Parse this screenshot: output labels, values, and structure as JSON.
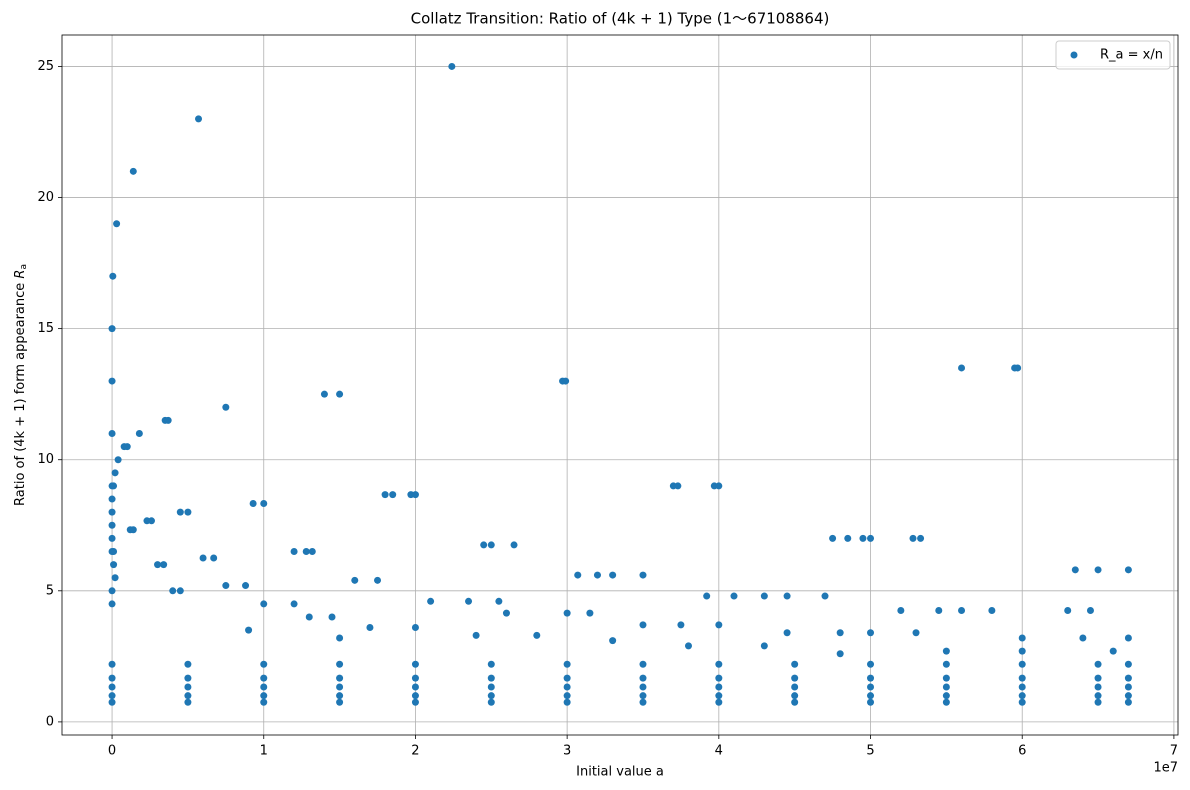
{
  "chart_data": {
    "type": "scatter",
    "title": "Collatz Transition: Ratio of (4k + 1) Type (1～67108864)",
    "xlabel": "Initial value a",
    "ylabel": "Ratio of (4k + 1) form appearance",
    "ylabel_symbol": "R",
    "ylabel_subscript": "a",
    "x_offset_label": "1e7",
    "xlim": [
      -3300000,
      70270000
    ],
    "ylim": [
      -0.5,
      26.2
    ],
    "xticks": [
      {
        "value": 0,
        "label": "0"
      },
      {
        "value": 10000000,
        "label": "1"
      },
      {
        "value": 20000000,
        "label": "2"
      },
      {
        "value": 30000000,
        "label": "3"
      },
      {
        "value": 40000000,
        "label": "4"
      },
      {
        "value": 50000000,
        "label": "5"
      },
      {
        "value": 60000000,
        "label": "6"
      },
      {
        "value": 70000000,
        "label": "7"
      }
    ],
    "yticks": [
      0,
      5,
      10,
      15,
      20,
      25
    ],
    "grid": true,
    "legend": "upper right",
    "series": [
      {
        "name": "R_a = x/n",
        "color": "#1f77b4",
        "x": [
          0,
          0,
          0,
          50000,
          300000,
          1400000,
          5700000,
          22400000,
          7500000,
          14000000,
          15000000,
          29700000,
          29900000,
          56000000,
          59500000,
          59700000,
          3500000,
          3700000,
          1800000,
          800000,
          1000000,
          400000,
          200000,
          0,
          100000,
          37000000,
          37300000,
          39700000,
          40000000,
          9300000,
          10000000,
          18000000,
          18500000,
          19700000,
          20000000,
          4500000,
          5000000,
          2300000,
          2600000,
          1200000,
          1400000,
          47500000,
          48500000,
          49500000,
          50000000,
          52800000,
          53300000,
          24500000,
          25000000,
          26500000,
          12000000,
          12800000,
          13200000,
          6000000,
          6700000,
          3000000,
          3400000,
          30700000,
          32000000,
          33000000,
          35000000,
          63500000,
          65000000,
          67000000,
          16000000,
          17500000,
          7500000,
          8800000,
          4000000,
          4500000,
          39200000,
          41000000,
          43000000,
          44500000,
          47000000,
          21000000,
          23500000,
          25500000,
          10000000,
          12000000,
          52000000,
          54500000,
          56000000,
          58000000,
          63000000,
          64500000,
          26000000,
          30000000,
          31500000,
          13000000,
          14500000,
          35000000,
          37500000,
          40000000,
          17000000,
          20000000,
          44500000,
          48000000,
          50000000,
          53000000,
          60000000,
          64000000,
          67000000,
          0,
          0,
          0,
          0,
          0,
          100000,
          100000,
          200000,
          0,
          0,
          9000000,
          15000000,
          24000000,
          28000000,
          33000000,
          38000000,
          43000000,
          48000000,
          55000000,
          60000000,
          66000000,
          0,
          5000000,
          10000000,
          15000000,
          20000000,
          25000000,
          30000000,
          35000000,
          40000000,
          45000000,
          50000000,
          55000000,
          60000000,
          65000000,
          67000000,
          0,
          5000000,
          10000000,
          15000000,
          20000000,
          25000000,
          30000000,
          35000000,
          40000000,
          45000000,
          50000000,
          55000000,
          60000000,
          65000000,
          67000000,
          0,
          5000000,
          10000000,
          15000000,
          20000000,
          25000000,
          30000000,
          35000000,
          40000000,
          45000000,
          50000000,
          55000000,
          60000000,
          65000000,
          67000000,
          0,
          5000000,
          10000000,
          15000000,
          20000000,
          25000000,
          30000000,
          35000000,
          40000000,
          45000000,
          50000000,
          55000000,
          60000000,
          65000000,
          67000000,
          0,
          5000000,
          10000000,
          15000000,
          20000000,
          25000000,
          30000000,
          35000000,
          40000000,
          45000000,
          50000000,
          55000000,
          60000000,
          65000000,
          67000000
        ],
        "values": [
          15,
          13,
          11,
          17,
          19,
          21,
          23,
          25,
          12,
          12.5,
          12.5,
          13,
          13,
          13.5,
          13.5,
          13.5,
          11.5,
          11.5,
          11,
          10.5,
          10.5,
          10,
          9.5,
          9,
          9,
          9,
          9,
          9,
          9,
          8.33,
          8.33,
          8.67,
          8.67,
          8.67,
          8.67,
          8,
          8,
          7.67,
          7.67,
          7.33,
          7.33,
          7,
          7,
          7,
          7,
          7,
          7,
          6.75,
          6.75,
          6.75,
          6.5,
          6.5,
          6.5,
          6.25,
          6.25,
          6,
          6,
          5.6,
          5.6,
          5.6,
          5.6,
          5.8,
          5.8,
          5.8,
          5.4,
          5.4,
          5.2,
          5.2,
          5,
          5,
          4.8,
          4.8,
          4.8,
          4.8,
          4.8,
          4.6,
          4.6,
          4.6,
          4.5,
          4.5,
          4.25,
          4.25,
          4.25,
          4.25,
          4.25,
          4.25,
          4.15,
          4.15,
          4.15,
          4,
          4,
          3.7,
          3.7,
          3.7,
          3.6,
          3.6,
          3.4,
          3.4,
          3.4,
          3.4,
          3.2,
          3.2,
          3.2,
          8.5,
          8,
          7.5,
          7,
          6.5,
          6.5,
          6,
          5.5,
          5,
          4.5,
          3.5,
          3.2,
          3.3,
          3.3,
          3.1,
          2.9,
          2.9,
          2.6,
          2.7,
          2.7,
          2.7,
          0.75,
          0.75,
          0.75,
          0.75,
          0.75,
          0.75,
          0.75,
          0.75,
          0.75,
          0.75,
          0.75,
          0.75,
          0.75,
          0.75,
          0.75,
          1,
          1,
          1,
          1,
          1,
          1,
          1,
          1,
          1,
          1,
          1,
          1,
          1,
          1,
          1,
          1.33,
          1.33,
          1.33,
          1.33,
          1.33,
          1.33,
          1.33,
          1.33,
          1.33,
          1.33,
          1.33,
          1.33,
          1.33,
          1.33,
          1.33,
          1.67,
          1.67,
          1.67,
          1.67,
          1.67,
          1.67,
          1.67,
          1.67,
          1.67,
          1.67,
          1.67,
          1.67,
          1.67,
          1.67,
          1.67,
          2.2,
          2.2,
          2.2,
          2.2,
          2.2,
          2.2,
          2.2,
          2.2,
          2.2,
          2.2,
          2.2,
          2.2,
          2.2,
          2.2,
          2.2
        ]
      }
    ]
  }
}
